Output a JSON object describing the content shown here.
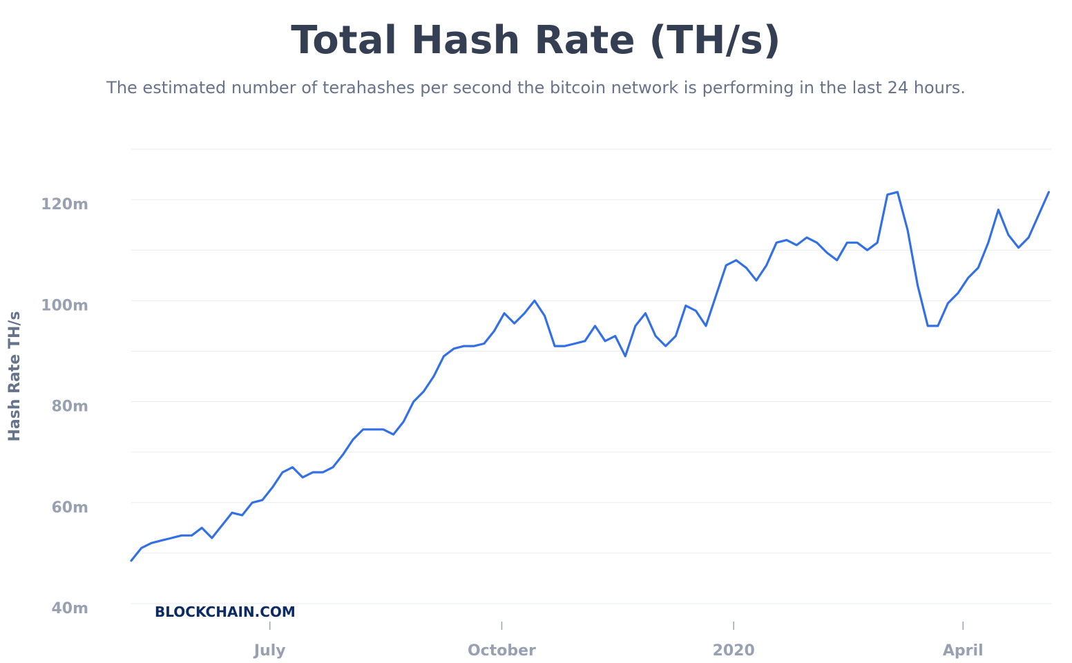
{
  "header": {
    "title": "Total Hash Rate (TH/s)",
    "subtitle": "The estimated number of terahashes per second the bitcoin network is performing in the last 24 hours."
  },
  "watermark": "BLOCKCHAIN.COM",
  "colors": {
    "line": "#3370e6",
    "grid": "#e9ebf0",
    "tick_text": "#98a1b2",
    "title": "#353f53",
    "subtitle": "#67738b",
    "brand": "#0c2b65"
  },
  "chart_data": {
    "type": "line",
    "title": "Total Hash Rate (TH/s)",
    "ylabel": "Hash Rate TH/s",
    "xlabel": "",
    "ylim": [
      40,
      130
    ],
    "xlim": [
      "2019-05-07",
      "2020-05-06"
    ],
    "grid": true,
    "y_ticks": [
      {
        "value": 40,
        "label": "40m"
      },
      {
        "value": 60,
        "label": "60m"
      },
      {
        "value": 80,
        "label": "80m"
      },
      {
        "value": 100,
        "label": "100m"
      },
      {
        "value": 120,
        "label": "120m"
      }
    ],
    "y_gridlines": [
      40,
      50,
      60,
      70,
      80,
      90,
      100,
      110,
      120,
      130
    ],
    "x_ticks": [
      {
        "date": "2019-07-01",
        "label": "July"
      },
      {
        "date": "2019-10-01",
        "label": "October"
      },
      {
        "date": "2020-01-01",
        "label": "2020"
      },
      {
        "date": "2020-04-01",
        "label": "April"
      }
    ],
    "series": [
      {
        "x": [
          "2019-05-07",
          "2019-05-11",
          "2019-05-15",
          "2019-05-19",
          "2019-05-23",
          "2019-05-27",
          "2019-05-31",
          "2019-06-04",
          "2019-06-08",
          "2019-06-12",
          "2019-06-16",
          "2019-06-20",
          "2019-06-24",
          "2019-06-28",
          "2019-07-02",
          "2019-07-06",
          "2019-07-10",
          "2019-07-14",
          "2019-07-18",
          "2019-07-22",
          "2019-07-26",
          "2019-07-30",
          "2019-08-03",
          "2019-08-07",
          "2019-08-11",
          "2019-08-15",
          "2019-08-19",
          "2019-08-23",
          "2019-08-27",
          "2019-08-31",
          "2019-09-04",
          "2019-09-08",
          "2019-09-12",
          "2019-09-16",
          "2019-09-20",
          "2019-09-24",
          "2019-09-28",
          "2019-10-02",
          "2019-10-06",
          "2019-10-10",
          "2019-10-14",
          "2019-10-18",
          "2019-10-22",
          "2019-10-26",
          "2019-10-30",
          "2019-11-03",
          "2019-11-07",
          "2019-11-11",
          "2019-11-15",
          "2019-11-19",
          "2019-11-23",
          "2019-11-27",
          "2019-12-01",
          "2019-12-05",
          "2019-12-09",
          "2019-12-13",
          "2019-12-17",
          "2019-12-21",
          "2019-12-25",
          "2019-12-29",
          "2020-01-02",
          "2020-01-06",
          "2020-01-10",
          "2020-01-14",
          "2020-01-18",
          "2020-01-22",
          "2020-01-26",
          "2020-01-30",
          "2020-02-03",
          "2020-02-07",
          "2020-02-11",
          "2020-02-15",
          "2020-02-19",
          "2020-02-23",
          "2020-02-27",
          "2020-03-02",
          "2020-03-06",
          "2020-03-10",
          "2020-03-14",
          "2020-03-18",
          "2020-03-22",
          "2020-03-26",
          "2020-03-30",
          "2020-04-03",
          "2020-04-07",
          "2020-04-11",
          "2020-04-15",
          "2020-04-19",
          "2020-04-23",
          "2020-04-27",
          "2020-05-01",
          "2020-05-05"
        ],
        "values": [
          48.5,
          51.0,
          52.0,
          52.5,
          53.0,
          53.5,
          53.5,
          55.0,
          53.0,
          55.5,
          58.0,
          57.5,
          60.0,
          60.5,
          63.0,
          66.0,
          67.0,
          65.0,
          66.0,
          66.0,
          67.0,
          69.5,
          72.5,
          74.5,
          74.5,
          74.5,
          73.5,
          76.0,
          80.0,
          82.0,
          85.0,
          89.0,
          90.5,
          91.0,
          91.0,
          91.5,
          94.0,
          97.5,
          95.5,
          97.5,
          100.0,
          97.0,
          91.0,
          91.0,
          91.5,
          92.0,
          95.0,
          92.0,
          93.0,
          89.0,
          95.0,
          97.5,
          93.0,
          91.0,
          93.0,
          99.0,
          98.0,
          95.0,
          101.0,
          107.0,
          108.0,
          106.5,
          104.0,
          107.0,
          111.5,
          112.0,
          111.0,
          112.5,
          111.5,
          109.5,
          108.0,
          111.5,
          111.5,
          110.0,
          111.5,
          121.0,
          121.5,
          114.0,
          103.0,
          95.0,
          95.0,
          99.5,
          101.5,
          104.5,
          106.5,
          111.5,
          118.0,
          113.0,
          110.5,
          112.5,
          117.0,
          121.5
        ]
      }
    ]
  }
}
